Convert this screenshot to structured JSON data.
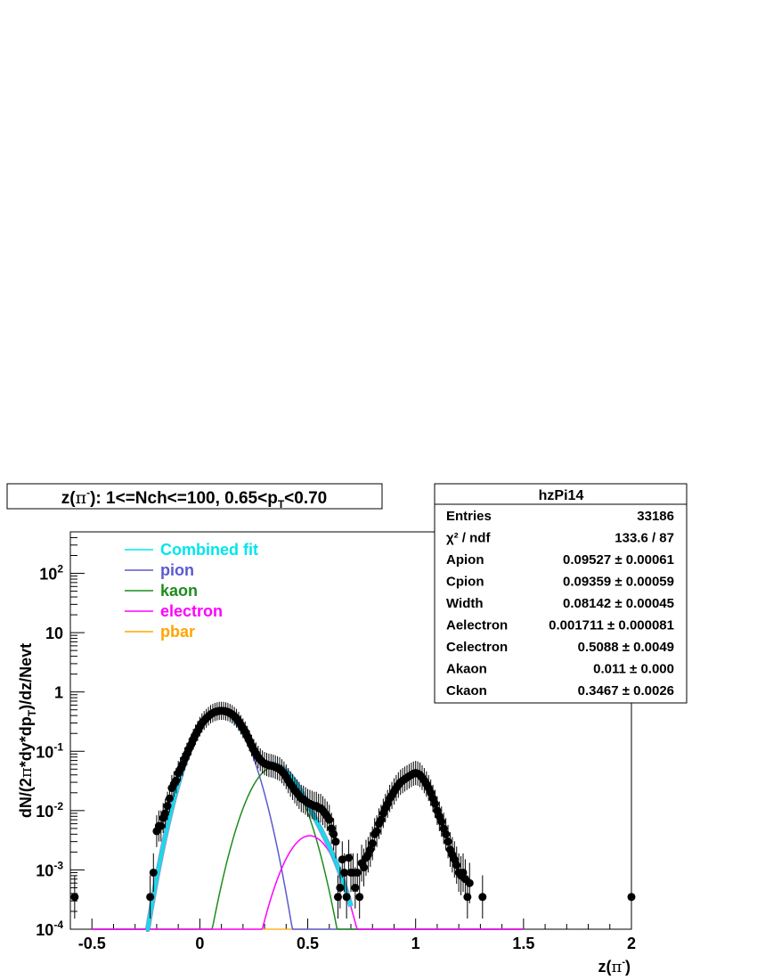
{
  "title_box": {
    "prefix": "z(",
    "pi": "π",
    "sup": "-",
    "mid": "): 1<=Nch<=100, 0.65<p",
    "sub": "T",
    "suffix": "<0.70"
  },
  "stats_box": {
    "name": "hzPi14",
    "rows": [
      {
        "label": "Entries",
        "value": "33186"
      },
      {
        "label": "χ² / ndf",
        "value": "133.6 / 87"
      },
      {
        "label": "Apion",
        "value": "0.09527 ± 0.00061"
      },
      {
        "label": "Cpion",
        "value": "0.09359 ± 0.00059"
      },
      {
        "label": "Width",
        "value": "0.08142 ± 0.00045"
      },
      {
        "label": "Aelectron",
        "value": "0.001711 ± 0.000081"
      },
      {
        "label": "Celectron",
        "value": "0.5088 ± 0.0049"
      },
      {
        "label": "Akaon",
        "value": "0.011 ± 0.000"
      },
      {
        "label": "Ckaon",
        "value": "0.3467 ± 0.0026"
      }
    ]
  },
  "colors": {
    "combined": "#00e5ee",
    "fill": "#5aa6d6",
    "pion": "#5a5ad2",
    "kaon": "#1e8c1e",
    "electron": "#ff00ff",
    "pbar": "#ffa500",
    "points": "#000000"
  },
  "chart_data": {
    "type": "scatter",
    "title": "z(π-): 1<=Nch<=100, 0.65<pT<0.70",
    "xlabel": "z(π-)",
    "ylabel": "dN/(2π*dy*dpT)/dz/Nevt",
    "xlim": [
      -0.6,
      2.0
    ],
    "ylim": [
      0.0001,
      500
    ],
    "yscale": "log",
    "x_ticks": [
      "-0.5",
      "0",
      "0.5",
      "1",
      "1.5",
      "2"
    ],
    "y_ticks": [
      {
        "value": 0.0001,
        "base": "10",
        "exp": "-4"
      },
      {
        "value": 0.001,
        "base": "10",
        "exp": "-3"
      },
      {
        "value": 0.01,
        "base": "10",
        "exp": "-2"
      },
      {
        "value": 0.1,
        "base": "10",
        "exp": "-1"
      },
      {
        "value": 1,
        "base": "1",
        "exp": ""
      },
      {
        "value": 10,
        "base": "10",
        "exp": ""
      },
      {
        "value": 100,
        "base": "10",
        "exp": "2"
      }
    ],
    "legend": {
      "placement": "top-left",
      "entries": [
        {
          "name": "Combined fit",
          "color": "#00e5ee"
        },
        {
          "name": "pion",
          "color": "#5a5ad2"
        },
        {
          "name": "kaon",
          "color": "#1e8c1e"
        },
        {
          "name": "electron",
          "color": "#ff00ff"
        },
        {
          "name": "pbar",
          "color": "#ffa500"
        }
      ]
    },
    "fit_params": {
      "Apion": 0.09527,
      "Cpion": 0.09359,
      "Width": 0.08142,
      "Aelectron": 0.001711,
      "Celectron": 0.5088,
      "Akaon": 0.011,
      "Ckaon": 0.3467
    },
    "fit_range": [
      -0.25,
      0.7
    ],
    "points": [
      {
        "x": -0.58,
        "y": 0.00035
      },
      {
        "x": -0.23,
        "y": 0.00035
      },
      {
        "x": -0.215,
        "y": 0.0009
      },
      {
        "x": -0.2,
        "y": 0.0045
      },
      {
        "x": -0.19,
        "y": 0.0055
      },
      {
        "x": -0.18,
        "y": 0.0055
      },
      {
        "x": -0.17,
        "y": 0.0075
      },
      {
        "x": -0.16,
        "y": 0.009
      },
      {
        "x": -0.15,
        "y": 0.012
      },
      {
        "x": -0.14,
        "y": 0.016
      },
      {
        "x": -0.13,
        "y": 0.024
      },
      {
        "x": -0.12,
        "y": 0.028
      },
      {
        "x": -0.11,
        "y": 0.032
      },
      {
        "x": -0.1,
        "y": 0.043
      },
      {
        "x": -0.09,
        "y": 0.05
      },
      {
        "x": -0.08,
        "y": 0.06
      },
      {
        "x": -0.07,
        "y": 0.075
      },
      {
        "x": -0.06,
        "y": 0.09
      },
      {
        "x": -0.05,
        "y": 0.11
      },
      {
        "x": -0.04,
        "y": 0.13
      },
      {
        "x": -0.03,
        "y": 0.16
      },
      {
        "x": -0.02,
        "y": 0.19
      },
      {
        "x": -0.01,
        "y": 0.22
      },
      {
        "x": 0.0,
        "y": 0.26
      },
      {
        "x": 0.01,
        "y": 0.3
      },
      {
        "x": 0.02,
        "y": 0.33
      },
      {
        "x": 0.03,
        "y": 0.36
      },
      {
        "x": 0.04,
        "y": 0.39
      },
      {
        "x": 0.05,
        "y": 0.42
      },
      {
        "x": 0.06,
        "y": 0.44
      },
      {
        "x": 0.07,
        "y": 0.46
      },
      {
        "x": 0.08,
        "y": 0.47
      },
      {
        "x": 0.09,
        "y": 0.48
      },
      {
        "x": 0.1,
        "y": 0.48
      },
      {
        "x": 0.11,
        "y": 0.48
      },
      {
        "x": 0.12,
        "y": 0.47
      },
      {
        "x": 0.13,
        "y": 0.46
      },
      {
        "x": 0.14,
        "y": 0.44
      },
      {
        "x": 0.15,
        "y": 0.42
      },
      {
        "x": 0.16,
        "y": 0.39
      },
      {
        "x": 0.17,
        "y": 0.36
      },
      {
        "x": 0.18,
        "y": 0.32
      },
      {
        "x": 0.19,
        "y": 0.28
      },
      {
        "x": 0.2,
        "y": 0.245
      },
      {
        "x": 0.21,
        "y": 0.215
      },
      {
        "x": 0.22,
        "y": 0.18
      },
      {
        "x": 0.23,
        "y": 0.15
      },
      {
        "x": 0.24,
        "y": 0.125
      },
      {
        "x": 0.25,
        "y": 0.105
      },
      {
        "x": 0.26,
        "y": 0.092
      },
      {
        "x": 0.27,
        "y": 0.08
      },
      {
        "x": 0.28,
        "y": 0.072
      },
      {
        "x": 0.29,
        "y": 0.066
      },
      {
        "x": 0.3,
        "y": 0.062
      },
      {
        "x": 0.31,
        "y": 0.06
      },
      {
        "x": 0.32,
        "y": 0.058
      },
      {
        "x": 0.33,
        "y": 0.057
      },
      {
        "x": 0.34,
        "y": 0.056
      },
      {
        "x": 0.35,
        "y": 0.054
      },
      {
        "x": 0.36,
        "y": 0.052
      },
      {
        "x": 0.37,
        "y": 0.05
      },
      {
        "x": 0.38,
        "y": 0.046
      },
      {
        "x": 0.39,
        "y": 0.042
      },
      {
        "x": 0.4,
        "y": 0.037
      },
      {
        "x": 0.41,
        "y": 0.032
      },
      {
        "x": 0.42,
        "y": 0.028
      },
      {
        "x": 0.43,
        "y": 0.025
      },
      {
        "x": 0.44,
        "y": 0.022
      },
      {
        "x": 0.45,
        "y": 0.02
      },
      {
        "x": 0.46,
        "y": 0.018
      },
      {
        "x": 0.47,
        "y": 0.016
      },
      {
        "x": 0.48,
        "y": 0.0155
      },
      {
        "x": 0.49,
        "y": 0.0145
      },
      {
        "x": 0.5,
        "y": 0.0135
      },
      {
        "x": 0.51,
        "y": 0.013
      },
      {
        "x": 0.52,
        "y": 0.0125
      },
      {
        "x": 0.53,
        "y": 0.012
      },
      {
        "x": 0.54,
        "y": 0.012
      },
      {
        "x": 0.55,
        "y": 0.011
      },
      {
        "x": 0.56,
        "y": 0.011
      },
      {
        "x": 0.57,
        "y": 0.01
      },
      {
        "x": 0.58,
        "y": 0.009
      },
      {
        "x": 0.59,
        "y": 0.008
      },
      {
        "x": 0.6,
        "y": 0.007
      },
      {
        "x": 0.61,
        "y": 0.005
      },
      {
        "x": 0.62,
        "y": 0.004
      },
      {
        "x": 0.63,
        "y": 0.003
      },
      {
        "x": 0.64,
        "y": 0.00035
      },
      {
        "x": 0.65,
        "y": 0.0005
      },
      {
        "x": 0.66,
        "y": 0.0015
      },
      {
        "x": 0.67,
        "y": 0.0009
      },
      {
        "x": 0.68,
        "y": 0.00035
      },
      {
        "x": 0.69,
        "y": 0.0016
      },
      {
        "x": 0.7,
        "y": 0.0009
      },
      {
        "x": 0.71,
        "y": 0.0009
      },
      {
        "x": 0.72,
        "y": 0.0005
      },
      {
        "x": 0.73,
        "y": 0.0009
      },
      {
        "x": 0.74,
        "y": 0.00035
      },
      {
        "x": 0.75,
        "y": 0.0013
      },
      {
        "x": 0.76,
        "y": 0.0011
      },
      {
        "x": 0.77,
        "y": 0.0016
      },
      {
        "x": 0.78,
        "y": 0.0018
      },
      {
        "x": 0.79,
        "y": 0.0022
      },
      {
        "x": 0.8,
        "y": 0.0028
      },
      {
        "x": 0.81,
        "y": 0.004
      },
      {
        "x": 0.82,
        "y": 0.0045
      },
      {
        "x": 0.83,
        "y": 0.006
      },
      {
        "x": 0.84,
        "y": 0.007
      },
      {
        "x": 0.85,
        "y": 0.009
      },
      {
        "x": 0.86,
        "y": 0.011
      },
      {
        "x": 0.87,
        "y": 0.013
      },
      {
        "x": 0.88,
        "y": 0.016
      },
      {
        "x": 0.89,
        "y": 0.018
      },
      {
        "x": 0.9,
        "y": 0.021
      },
      {
        "x": 0.91,
        "y": 0.024
      },
      {
        "x": 0.92,
        "y": 0.027
      },
      {
        "x": 0.93,
        "y": 0.03
      },
      {
        "x": 0.94,
        "y": 0.032
      },
      {
        "x": 0.95,
        "y": 0.034
      },
      {
        "x": 0.96,
        "y": 0.036
      },
      {
        "x": 0.97,
        "y": 0.038
      },
      {
        "x": 0.98,
        "y": 0.04
      },
      {
        "x": 0.99,
        "y": 0.042
      },
      {
        "x": 1.0,
        "y": 0.043
      },
      {
        "x": 1.01,
        "y": 0.042
      },
      {
        "x": 1.02,
        "y": 0.04
      },
      {
        "x": 1.03,
        "y": 0.036
      },
      {
        "x": 1.04,
        "y": 0.032
      },
      {
        "x": 1.05,
        "y": 0.028
      },
      {
        "x": 1.06,
        "y": 0.024
      },
      {
        "x": 1.07,
        "y": 0.02
      },
      {
        "x": 1.08,
        "y": 0.016
      },
      {
        "x": 1.09,
        "y": 0.013
      },
      {
        "x": 1.1,
        "y": 0.01
      },
      {
        "x": 1.11,
        "y": 0.008
      },
      {
        "x": 1.12,
        "y": 0.0065
      },
      {
        "x": 1.13,
        "y": 0.005
      },
      {
        "x": 1.14,
        "y": 0.004
      },
      {
        "x": 1.15,
        "y": 0.003
      },
      {
        "x": 1.16,
        "y": 0.0022
      },
      {
        "x": 1.17,
        "y": 0.0018
      },
      {
        "x": 1.18,
        "y": 0.0015
      },
      {
        "x": 1.19,
        "y": 0.0012
      },
      {
        "x": 1.2,
        "y": 0.0009
      },
      {
        "x": 1.21,
        "y": 0.0008
      },
      {
        "x": 1.22,
        "y": 0.0009
      },
      {
        "x": 1.23,
        "y": 0.0007
      },
      {
        "x": 1.24,
        "y": 0.00035
      },
      {
        "x": 1.25,
        "y": 0.0006
      },
      {
        "x": 1.31,
        "y": 0.00035
      },
      {
        "x": 2.0,
        "y": 0.00035
      }
    ]
  }
}
